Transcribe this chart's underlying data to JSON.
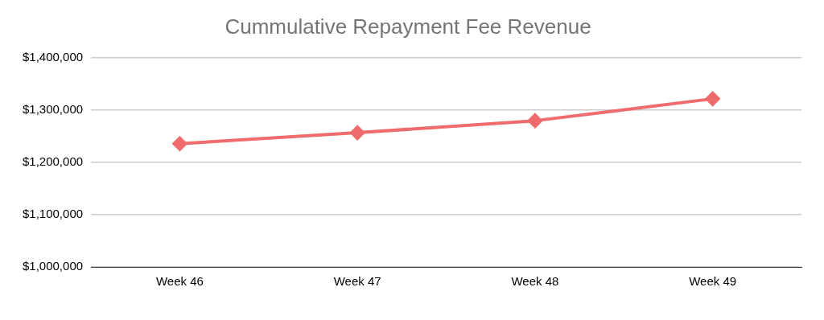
{
  "chart_data": {
    "type": "line",
    "title": "Cummulative Repayment Fee Revenue",
    "categories": [
      "Week 46",
      "Week 47",
      "Week 48",
      "Week 49"
    ],
    "series": [
      {
        "color": "#f06b6b",
        "values": [
          1236000,
          1257000,
          1280000,
          1322000
        ]
      }
    ],
    "ylim": [
      1000000,
      1400000
    ],
    "yticks": [
      {
        "value": 1000000,
        "label": "$1,000,000"
      },
      {
        "value": 1100000,
        "label": "$1,100,000"
      },
      {
        "value": 1200000,
        "label": "$1,200,000"
      },
      {
        "value": 1300000,
        "label": "$1,300,000"
      },
      {
        "value": 1400000,
        "label": "$1,400,000"
      }
    ],
    "grid": "y",
    "legend": false,
    "marker": "diamond",
    "line_style": "solid"
  }
}
